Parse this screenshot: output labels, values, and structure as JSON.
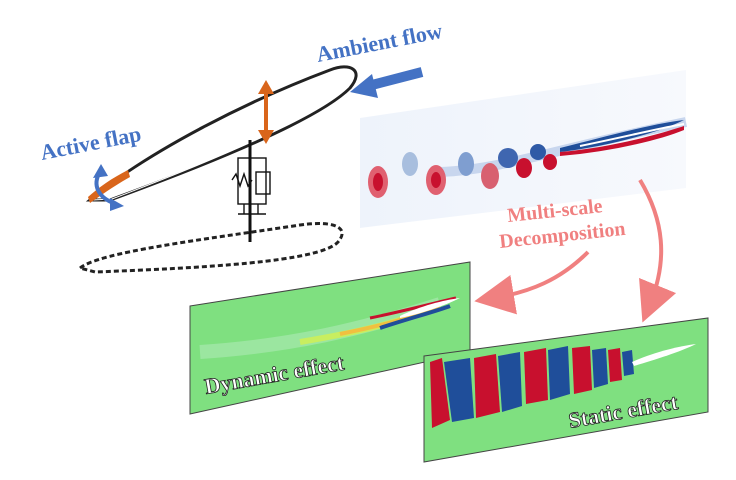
{
  "labels": {
    "ambient_flow": "Ambient flow",
    "active_flap": "Active flap",
    "decomposition_line1": "Multi-scale",
    "decomposition_line2": "Decomposition",
    "dynamic_effect": "Dynamic effect",
    "static_effect": "Static effect"
  },
  "colors": {
    "label_blue": "#4472C4",
    "arrow_blue": "#4472C4",
    "arrow_orange": "#D9651B",
    "decomp_pink": "#F08080",
    "panel_green": "#7FE080",
    "vortex_red": "#C8102E",
    "vortex_blue": "#1F4E9A"
  },
  "icons": {
    "ambient_arrow": "arrow-left-icon",
    "plunge_arrow": "double-vertical-arrow-icon",
    "flap_rotation": "curved-double-arrow-icon",
    "spring_damper": "spring-damper-icon"
  }
}
